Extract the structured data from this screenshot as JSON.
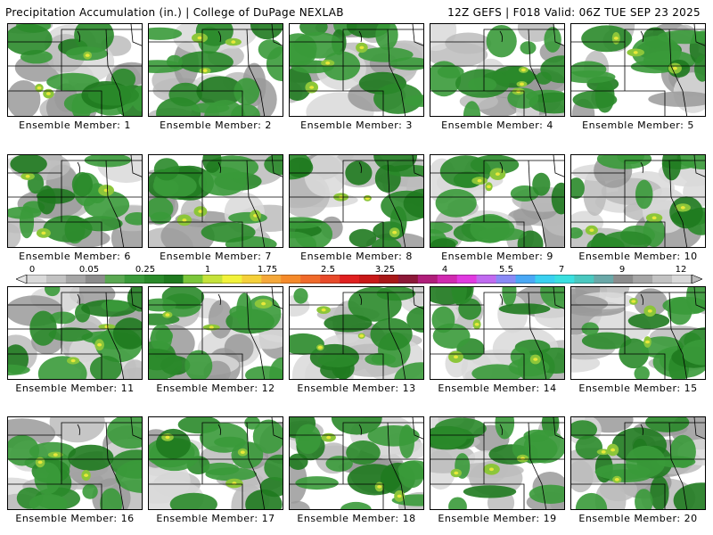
{
  "header": {
    "left": "Precipitation Accumulation (in.) | College of DuPage NEXLAB",
    "right": "12Z GEFS | F018 Valid: 06Z TUE SEP 23 2025"
  },
  "panels": [
    {
      "label": "Ensemble Member: 1"
    },
    {
      "label": "Ensemble Member: 2"
    },
    {
      "label": "Ensemble Member: 3"
    },
    {
      "label": "Ensemble Member: 4"
    },
    {
      "label": "Ensemble Member: 5"
    },
    {
      "label": "Ensemble Member: 6"
    },
    {
      "label": "Ensemble Member: 7"
    },
    {
      "label": "Ensemble Member: 8"
    },
    {
      "label": "Ensemble Member: 9"
    },
    {
      "label": "Ensemble Member: 10"
    },
    {
      "label": "Ensemble Member: 11"
    },
    {
      "label": "Ensemble Member: 12"
    },
    {
      "label": "Ensemble Member: 13"
    },
    {
      "label": "Ensemble Member: 14"
    },
    {
      "label": "Ensemble Member: 15"
    },
    {
      "label": "Ensemble Member: 16"
    },
    {
      "label": "Ensemble Member: 17"
    },
    {
      "label": "Ensemble Member: 18"
    },
    {
      "label": "Ensemble Member: 19"
    },
    {
      "label": "Ensemble Member: 20"
    }
  ],
  "colorbar": {
    "labels": [
      "0",
      "0.05",
      "0.25",
      "1",
      "1.75",
      "2.5",
      "3.25",
      "4",
      "5.5",
      "7",
      "9",
      "12"
    ],
    "colors": [
      "#d9d9d9",
      "#c2c2c2",
      "#a6a6a6",
      "#8c8c8c",
      "#5aa852",
      "#3a9a3a",
      "#2a8a2a",
      "#1f7a1f",
      "#7bc63a",
      "#c5e23a",
      "#f2f23a",
      "#f5d03a",
      "#f5a83a",
      "#f58a2a",
      "#f06a2a",
      "#e84a2a",
      "#e02020",
      "#c81818",
      "#a81818",
      "#8c1838",
      "#b01e7a",
      "#d02ab0",
      "#e03ae0",
      "#c06af0",
      "#8a8af5",
      "#4aa8f5",
      "#3ad0f0",
      "#3ae0e0",
      "#4ac8c0",
      "#6aa8a8",
      "#8c8c8c",
      "#a6a6a6",
      "#c2c2c2",
      "#d9d9d9"
    ]
  }
}
